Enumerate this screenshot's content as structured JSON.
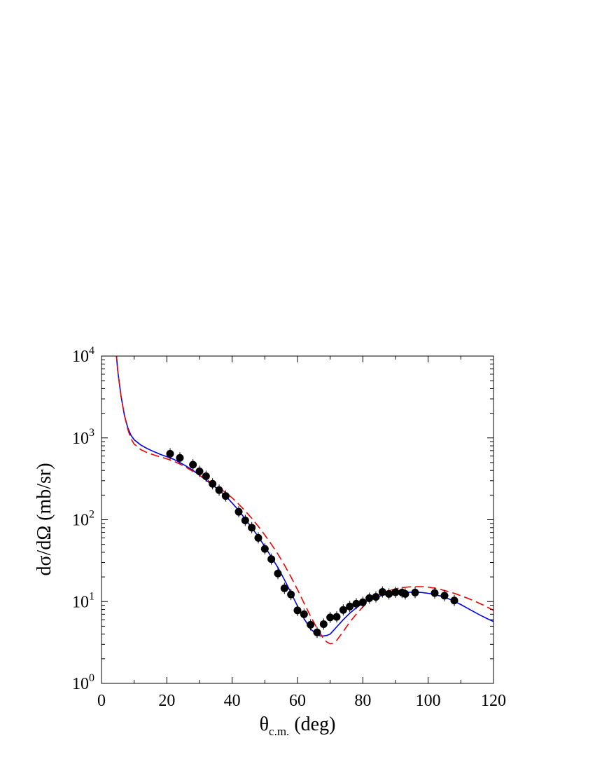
{
  "chart_data": {
    "type": "scatter",
    "xlabel": "θc.m. (deg)",
    "xlabel_main": "θ",
    "xlabel_sub": "c.m.",
    "xlabel_rest": " (deg)",
    "ylabel": "dσ/dΩ (mb/sr)",
    "xlim": [
      0,
      120
    ],
    "ylim": [
      1,
      10000
    ],
    "yscale": "log",
    "grid": false,
    "x_ticks": [
      0,
      20,
      40,
      60,
      80,
      100,
      120
    ],
    "x_tick_labels": [
      "0",
      "20",
      "40",
      "60",
      "80",
      "100",
      "120"
    ],
    "y_ticks": [
      1,
      10,
      100,
      1000,
      10000
    ],
    "y_tick_base": "10",
    "y_tick_exponents": [
      "0",
      "1",
      "2",
      "3",
      "4"
    ],
    "series": [
      {
        "kind": "points",
        "color": "#000000",
        "x": [
          21,
          24,
          28,
          30,
          32,
          34,
          36,
          38,
          42,
          44,
          46,
          48,
          50,
          52,
          54,
          56,
          58,
          60,
          62,
          64,
          66,
          68,
          70,
          72,
          74,
          76,
          78,
          80,
          82,
          84,
          86,
          88,
          90,
          92,
          93,
          96,
          102,
          105,
          108
        ],
        "y": [
          640,
          570,
          470,
          390,
          340,
          275,
          230,
          195,
          125,
          98,
          80,
          60,
          44,
          33,
          22,
          14.5,
          12.2,
          7.8,
          7.0,
          5.2,
          4.2,
          5.3,
          6.4,
          6.5,
          7.9,
          8.7,
          9.4,
          9.8,
          11.0,
          11.4,
          13.1,
          12.4,
          13.0,
          12.9,
          12.4,
          12.9,
          12.7,
          11.8,
          10.3
        ]
      },
      {
        "kind": "line",
        "style": "solid",
        "color": "#0000ee",
        "x": [
          4.5,
          5,
          6,
          7,
          8,
          9,
          10,
          12,
          14,
          16,
          18,
          20,
          22,
          24,
          26,
          28,
          30,
          32,
          34,
          36,
          38,
          40,
          42,
          44,
          46,
          48,
          50,
          52,
          54,
          56,
          58,
          60,
          62,
          64,
          66,
          67,
          68,
          69,
          70,
          72,
          74,
          76,
          78,
          80,
          82,
          84,
          86,
          88,
          90,
          92,
          94,
          96,
          98,
          100,
          102,
          104,
          106,
          108,
          110,
          112,
          114,
          116,
          118,
          120
        ],
        "y": [
          11000,
          6500,
          3200,
          1900,
          1350,
          1080,
          950,
          820,
          740,
          680,
          630,
          590,
          550,
          500,
          450,
          400,
          350,
          305,
          265,
          230,
          195,
          160,
          130,
          102,
          80,
          62,
          47,
          35,
          26,
          18.5,
          12.8,
          8.8,
          6.2,
          4.6,
          3.95,
          3.8,
          3.8,
          3.85,
          4.0,
          4.9,
          6.0,
          7.2,
          8.4,
          9.5,
          10.5,
          11.3,
          11.9,
          12.4,
          12.7,
          12.9,
          13.0,
          13.0,
          12.9,
          12.6,
          12.2,
          11.6,
          10.9,
          10.1,
          9.2,
          8.3,
          7.5,
          6.8,
          6.2,
          5.7
        ]
      },
      {
        "kind": "line",
        "style": "dashed",
        "color": "#ee0000",
        "x": [
          4.5,
          5,
          6,
          7,
          8,
          9,
          10,
          12,
          14,
          16,
          18,
          20,
          22,
          24,
          26,
          28,
          30,
          32,
          34,
          36,
          38,
          40,
          42,
          44,
          46,
          48,
          50,
          52,
          54,
          56,
          58,
          60,
          62,
          64,
          66,
          68,
          69,
          70,
          71,
          72,
          74,
          76,
          78,
          80,
          82,
          84,
          86,
          88,
          90,
          92,
          94,
          96,
          98,
          100,
          102,
          104,
          106,
          108,
          110,
          112,
          114,
          116,
          118,
          120
        ],
        "y": [
          11000,
          6500,
          3200,
          1900,
          1300,
          980,
          840,
          720,
          660,
          620,
          585,
          555,
          520,
          480,
          435,
          390,
          350,
          312,
          278,
          245,
          215,
          185,
          155,
          128,
          104,
          83,
          65,
          50,
          38,
          28,
          20,
          14,
          9.6,
          6.6,
          4.7,
          3.5,
          3.2,
          3.05,
          3.1,
          3.35,
          4.3,
          5.6,
          7.0,
          8.6,
          10.1,
          11.5,
          12.7,
          13.6,
          14.3,
          14.8,
          15.1,
          15.2,
          15.2,
          15.0,
          14.6,
          14.0,
          13.3,
          12.6,
          11.8,
          11.0,
          10.2,
          9.4,
          8.6,
          7.8
        ]
      }
    ]
  }
}
